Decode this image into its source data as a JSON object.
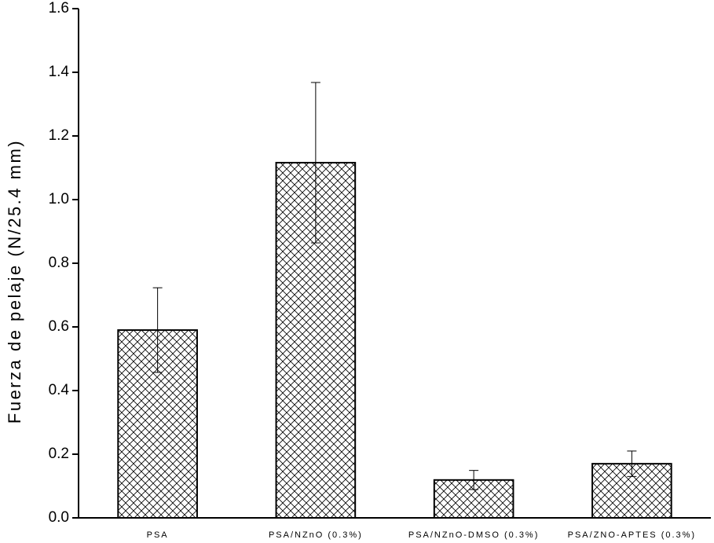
{
  "chart_data": {
    "type": "bar",
    "y_label": "Fuerza de pelaje (N/25.4 mm)",
    "categories": [
      "PSA",
      "PSA/NZnO (0.3%)",
      "PSA/NZnO-DMSO (0.3%)",
      "PSA/ZNO-APTES (0.3%)"
    ],
    "values": [
      0.59,
      1.116,
      0.119,
      0.17
    ],
    "errors": [
      0.133,
      0.252,
      0.03,
      0.04
    ],
    "color": "#000000",
    "ylim": [
      0,
      1.6
    ],
    "yticks": [
      {
        "value": 0,
        "label": "0.0"
      },
      0.2,
      0.4,
      0.6,
      0.8,
      {
        "value": 1,
        "label": "1.0"
      },
      1.2,
      1.4,
      1.6
    ]
  }
}
